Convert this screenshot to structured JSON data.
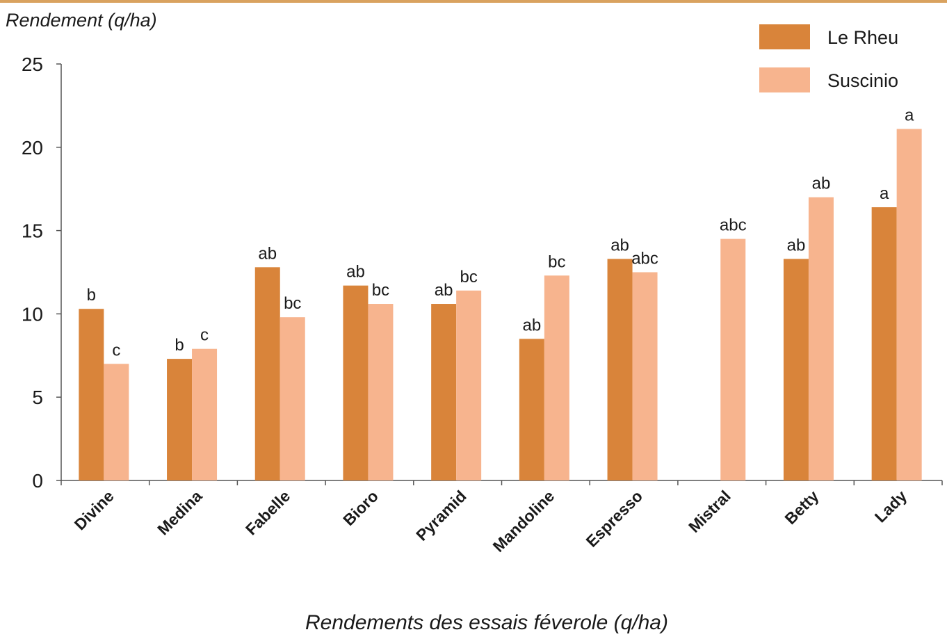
{
  "chart_data": {
    "type": "bar",
    "y_label": "Rendement (q/ha)",
    "x_label": "Rendements des essais féverole (q/ha)",
    "categories": [
      "Divine",
      "Medina",
      "Fabelle",
      "Bioro",
      "Pyramid",
      "Mandoline",
      "Espresso",
      "Mistral",
      "Betty",
      "Lady"
    ],
    "series": [
      {
        "name": "Le Rheu",
        "color": "#d9843a",
        "values": [
          10.3,
          7.3,
          12.8,
          11.7,
          10.6,
          8.5,
          13.3,
          null,
          13.3,
          16.4
        ],
        "significance": [
          "b",
          "b",
          "ab",
          "ab",
          "ab",
          "ab",
          "ab",
          null,
          "ab",
          "a"
        ]
      },
      {
        "name": "Suscinio",
        "color": "#f7b48e",
        "values": [
          7.0,
          7.9,
          9.8,
          10.6,
          11.4,
          12.3,
          12.5,
          14.5,
          17.0,
          21.1
        ],
        "significance": [
          "c",
          "c",
          "bc",
          "bc",
          "bc",
          "bc",
          "abc",
          "abc",
          "ab",
          "a"
        ]
      }
    ],
    "ylim": [
      0,
      25
    ],
    "yticks": [
      0,
      5,
      10,
      15,
      20,
      25
    ],
    "grid": false,
    "legend": "top-right"
  }
}
